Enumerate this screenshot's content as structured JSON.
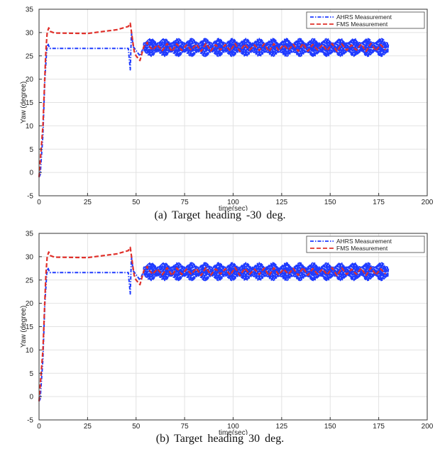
{
  "chart_data": [
    {
      "type": "line",
      "caption": "(a) Target heading -30 deg.",
      "xlabel": "time(sec)",
      "ylabel": "Yaw (degree)",
      "xlim": [
        0,
        200
      ],
      "ylim": [
        -5,
        35
      ],
      "xticks": [
        "0",
        "25",
        "50",
        "75",
        "100",
        "125",
        "150",
        "175",
        "200"
      ],
      "yticks": [
        "-5",
        "0",
        "5",
        "10",
        "15",
        "20",
        "25",
        "30",
        "35"
      ],
      "grid": true,
      "legend_position": "top-right",
      "series": [
        {
          "name": "AHRS Measurement",
          "color": "#1f3bff",
          "style": "dash-dot",
          "keypoints": [
            [
              0,
              -1
            ],
            [
              0.6,
              -0.5
            ],
            [
              2,
              8
            ],
            [
              3,
              20
            ],
            [
              4,
              26.5
            ],
            [
              4.6,
              27.6
            ],
            [
              5.5,
              26.6
            ],
            [
              46,
              26.6
            ],
            [
              47,
              22
            ],
            [
              47.6,
              30
            ],
            [
              48.5,
              27
            ],
            [
              52,
              25
            ],
            [
              54,
              27
            ]
          ],
          "oscillation": {
            "start": 54,
            "end": 180,
            "center": 26.8,
            "amplitude": 1.9,
            "period_sec": 0.5
          }
        },
        {
          "name": "FMS Measurement",
          "color": "#e0302a",
          "style": "dashed",
          "keypoints": [
            [
              0,
              -1
            ],
            [
              2,
              10
            ],
            [
              3.5,
              26
            ],
            [
              4.2,
              30
            ],
            [
              5,
              31
            ],
            [
              6,
              30.2
            ],
            [
              8,
              29.9
            ],
            [
              25,
              29.8
            ],
            [
              40,
              30.6
            ],
            [
              46,
              31.3
            ],
            [
              47,
              32
            ],
            [
              48,
              29
            ],
            [
              49,
              26
            ],
            [
              50,
              25
            ],
            [
              52,
              24
            ],
            [
              54,
              27
            ],
            [
              56,
              28
            ]
          ],
          "oscillation": {
            "start": 56,
            "end": 180,
            "center": 26.8,
            "amplitude": 0.9,
            "period_sec": 5
          }
        }
      ]
    },
    {
      "type": "line",
      "caption": "(b) Target heading 30 deg.",
      "xlabel": "time(sec)",
      "ylabel": "Yaw (degree)",
      "xlim": [
        0,
        200
      ],
      "ylim": [
        -5,
        35
      ],
      "xticks": [
        "0",
        "25",
        "50",
        "75",
        "100",
        "125",
        "150",
        "175",
        "200"
      ],
      "yticks": [
        "-5",
        "0",
        "5",
        "10",
        "15",
        "20",
        "25",
        "30",
        "35"
      ],
      "grid": true,
      "legend_position": "top-right",
      "series": [
        {
          "name": "AHRS Measurement",
          "color": "#1f3bff",
          "style": "dash-dot",
          "keypoints": [
            [
              0,
              -1
            ],
            [
              0.6,
              -0.5
            ],
            [
              2,
              8
            ],
            [
              3,
              20
            ],
            [
              4,
              26.5
            ],
            [
              4.6,
              27.6
            ],
            [
              5.5,
              26.6
            ],
            [
              46,
              26.6
            ],
            [
              47,
              22
            ],
            [
              47.6,
              30
            ],
            [
              48.5,
              27
            ],
            [
              52,
              25
            ],
            [
              54,
              27
            ]
          ],
          "oscillation": {
            "start": 54,
            "end": 180,
            "center": 26.8,
            "amplitude": 1.9,
            "period_sec": 0.5
          }
        },
        {
          "name": "FMS Measurement",
          "color": "#e0302a",
          "style": "dashed",
          "keypoints": [
            [
              0,
              -1
            ],
            [
              2,
              10
            ],
            [
              3.5,
              26
            ],
            [
              4.2,
              30
            ],
            [
              5,
              31
            ],
            [
              6,
              30.2
            ],
            [
              8,
              29.9
            ],
            [
              25,
              29.8
            ],
            [
              40,
              30.6
            ],
            [
              46,
              31.3
            ],
            [
              47,
              32
            ],
            [
              48,
              29
            ],
            [
              49,
              26
            ],
            [
              50,
              25
            ],
            [
              52,
              24
            ],
            [
              54,
              27
            ],
            [
              56,
              28
            ]
          ],
          "oscillation": {
            "start": 56,
            "end": 180,
            "center": 26.8,
            "amplitude": 0.9,
            "period_sec": 5
          }
        }
      ]
    }
  ]
}
